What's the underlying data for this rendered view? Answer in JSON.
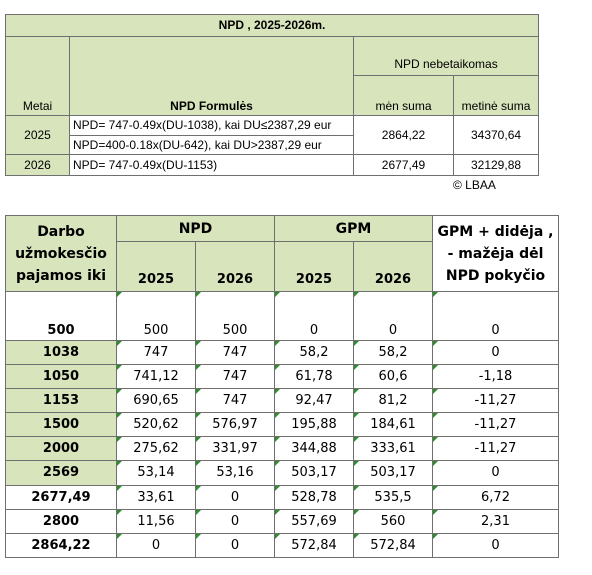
{
  "top_table": {
    "title": "NPD , 2025-2026m.",
    "header": {
      "metai": "Metai",
      "formules": "NPD Formulės",
      "group": "NPD nebetaikomas",
      "men_suma": "mėn suma",
      "metine_suma": "metinė suma"
    },
    "rows": [
      {
        "year": "2025",
        "formula1": "NPD= 747-0.49x(DU-1038), kai DU≤2387,29 eur",
        "formula2": "NPD=400-0.18x(DU-642), kai DU>2387,29 eur",
        "men": "2864,22",
        "metine": "34370,64"
      },
      {
        "year": "2026",
        "formula1": "NPD= 747-0.49x(DU-1153)",
        "men": "2677,49",
        "metine": "32129,88"
      }
    ],
    "copyright": "© LBAA"
  },
  "bottom_table": {
    "header": {
      "col1_line1": "Darbo",
      "col1_line2": "užmokesčio",
      "col1_line3": "pajamos iki",
      "npd": "NPD",
      "gpm": "GPM",
      "diff_line1": "GPM + didėja ,",
      "diff_line2": "- mažėja dėl",
      "diff_line3": "NPD pokyčio",
      "y2025a": "2025",
      "y2026a": "2026",
      "y2025b": "2025",
      "y2026b": "2026"
    },
    "rows": [
      {
        "income": "500",
        "npd2025": "500",
        "npd2026": "500",
        "gpm2025": "0",
        "gpm2026": "0",
        "diff": "0"
      },
      {
        "income": "1038",
        "npd2025": "747",
        "npd2026": "747",
        "gpm2025": "58,2",
        "gpm2026": "58,2",
        "diff": "0"
      },
      {
        "income": "1050",
        "npd2025": "741,12",
        "npd2026": "747",
        "gpm2025": "61,78",
        "gpm2026": "60,6",
        "diff": "-1,18"
      },
      {
        "income": "1153",
        "npd2025": "690,65",
        "npd2026": "747",
        "gpm2025": "92,47",
        "gpm2026": "81,2",
        "diff": "-11,27"
      },
      {
        "income": "1500",
        "npd2025": "520,62",
        "npd2026": "576,97",
        "gpm2025": "195,88",
        "gpm2026": "184,61",
        "diff": "-11,27"
      },
      {
        "income": "2000",
        "npd2025": "275,62",
        "npd2026": "331,97",
        "gpm2025": "344,88",
        "gpm2026": "333,61",
        "diff": "-11,27"
      },
      {
        "income": "2569",
        "npd2025": "53,14",
        "npd2026": "53,16",
        "gpm2025": "503,17",
        "gpm2026": "503,17",
        "diff": "0"
      },
      {
        "income": "2677,49",
        "npd2025": "33,61",
        "npd2026": "0",
        "gpm2025": "528,78",
        "gpm2026": "535,5",
        "diff": "6,72"
      },
      {
        "income": "2800",
        "npd2025": "11,56",
        "npd2026": "0",
        "gpm2025": "557,69",
        "gpm2026": "560",
        "diff": "2,31"
      },
      {
        "income": "2864,22",
        "npd2025": "0",
        "npd2026": "0",
        "gpm2025": "572,84",
        "gpm2026": "572,84",
        "diff": "0"
      }
    ],
    "green_rows": [
      1,
      2,
      3,
      4,
      5,
      6
    ],
    "thick_top_rows": [
      7
    ],
    "colors": {
      "header_green": "#d8e4bc",
      "marker": "#2e8b2e",
      "border": "#6f6f6f"
    }
  }
}
